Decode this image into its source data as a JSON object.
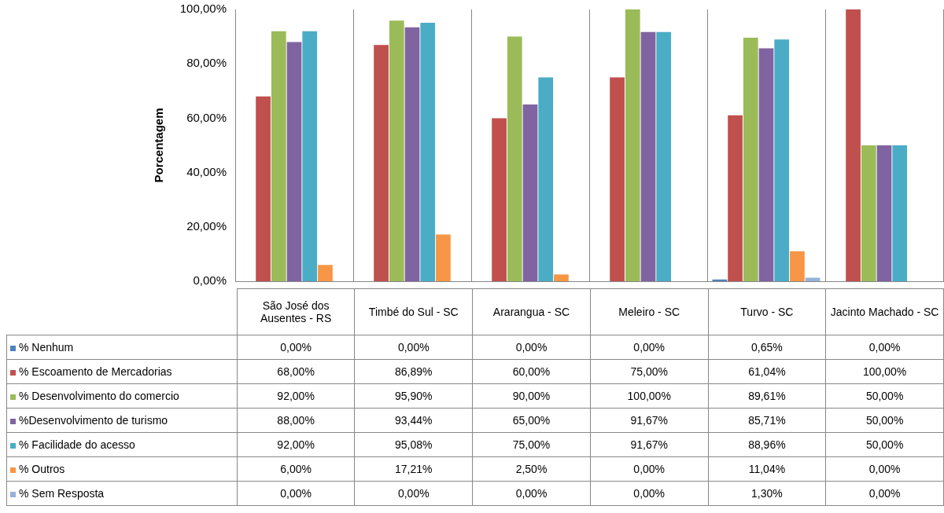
{
  "chart_data": {
    "type": "bar",
    "ylabel": "Porcentagem",
    "categories": [
      "São José dos Ausentes - RS",
      "Timbé do Sul - SC",
      "Ararangua - SC",
      "Meleiro - SC",
      "Turvo - SC",
      "Jacinto Machado - SC"
    ],
    "series": [
      {
        "name": "% Nenhum",
        "color": "#4f81bd",
        "values": [
          0,
          0,
          0,
          0,
          0.65,
          0
        ],
        "value_labels": [
          "0,00%",
          "0,00%",
          "0,00%",
          "0,00%",
          "0,65%",
          "0,00%"
        ]
      },
      {
        "name": "% Escoamento de Mercadorias",
        "color": "#c0504d",
        "values": [
          68,
          86.89,
          60,
          75,
          61.04,
          100
        ],
        "value_labels": [
          "68,00%",
          "86,89%",
          "60,00%",
          "75,00%",
          "61,04%",
          "100,00%"
        ]
      },
      {
        "name": "% Desenvolvimento do comercio",
        "color": "#9bbb59",
        "values": [
          92,
          95.9,
          90,
          100,
          89.61,
          50
        ],
        "value_labels": [
          "92,00%",
          "95,90%",
          "90,00%",
          "100,00%",
          "89,61%",
          "50,00%"
        ]
      },
      {
        "name": "%Desenvolvimento de turismo",
        "color": "#8064a2",
        "values": [
          88,
          93.44,
          65,
          91.67,
          85.71,
          50
        ],
        "value_labels": [
          "88,00%",
          "93,44%",
          "65,00%",
          "91,67%",
          "85,71%",
          "50,00%"
        ]
      },
      {
        "name": "% Facilidade do acesso",
        "color": "#4bacc6",
        "values": [
          92,
          95.08,
          75,
          91.67,
          88.96,
          50
        ],
        "value_labels": [
          "92,00%",
          "95,08%",
          "75,00%",
          "91,67%",
          "88,96%",
          "50,00%"
        ]
      },
      {
        "name": "% Outros",
        "color": "#f79646",
        "values": [
          6,
          17.21,
          2.5,
          0,
          11.04,
          0
        ],
        "value_labels": [
          "6,00%",
          "17,21%",
          "2,50%",
          "0,00%",
          "11,04%",
          "0,00%"
        ]
      },
      {
        "name": "% Sem Resposta",
        "color": "#95b3d7",
        "values": [
          0,
          0,
          0,
          0,
          1.3,
          0
        ],
        "value_labels": [
          "0,00%",
          "0,00%",
          "0,00%",
          "0,00%",
          "1,30%",
          "0,00%"
        ]
      }
    ],
    "ylim": [
      0,
      100
    ],
    "yticks": [
      {
        "value": 0,
        "label": "0,00%"
      },
      {
        "value": 20,
        "label": "20,00%"
      },
      {
        "value": 40,
        "label": "40,00%"
      },
      {
        "value": 60,
        "label": "60,00%"
      },
      {
        "value": 80,
        "label": "80,00%"
      },
      {
        "value": 100,
        "label": "100,00%"
      }
    ],
    "grid": "x",
    "legend": "bottom"
  }
}
